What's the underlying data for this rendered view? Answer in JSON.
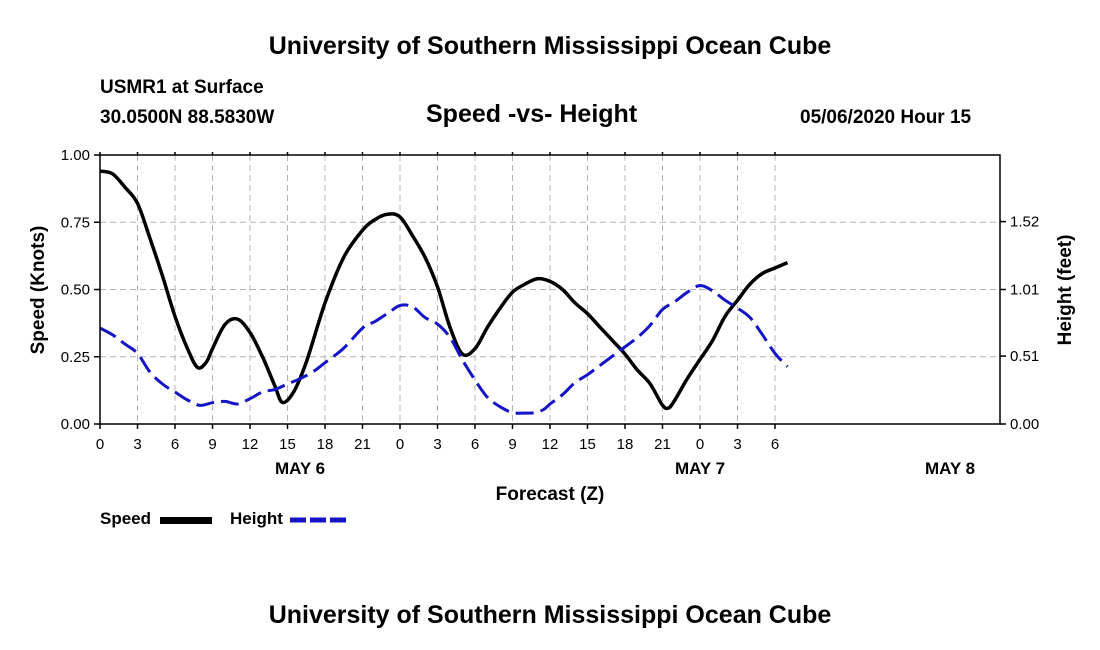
{
  "header": {
    "title_top": "University of Southern Mississippi Ocean Cube",
    "station": "USMR1 at Surface",
    "coords": "30.0500N 88.5830W",
    "chart_title": "Speed -vs- Height",
    "datetime": "05/06/2020 Hour 15"
  },
  "footer": {
    "title_bottom": "University of Southern Mississippi Ocean Cube"
  },
  "legend": {
    "speed_label": "Speed",
    "height_label": "Height"
  },
  "colors": {
    "speed": "#000000",
    "height": "#1414c8",
    "grid": "#b4b4b4"
  },
  "chart_data": {
    "type": "line",
    "title": "Speed -vs- Height",
    "xlabel": "Forecast (Z)",
    "ylabel_left": "Speed (Knots)",
    "ylabel_right": "Height (feet)",
    "x_range_hours": [
      0,
      72
    ],
    "x_ticks": [
      {
        "h": 0,
        "label": "0"
      },
      {
        "h": 3,
        "label": "3"
      },
      {
        "h": 6,
        "label": "6"
      },
      {
        "h": 9,
        "label": "9"
      },
      {
        "h": 12,
        "label": "12"
      },
      {
        "h": 15,
        "label": "15"
      },
      {
        "h": 18,
        "label": "18"
      },
      {
        "h": 21,
        "label": "21"
      },
      {
        "h": 24,
        "label": "0"
      },
      {
        "h": 27,
        "label": "3"
      },
      {
        "h": 30,
        "label": "6"
      },
      {
        "h": 33,
        "label": "9"
      },
      {
        "h": 36,
        "label": "12"
      },
      {
        "h": 39,
        "label": "15"
      },
      {
        "h": 42,
        "label": "18"
      },
      {
        "h": 45,
        "label": "21"
      },
      {
        "h": 48,
        "label": "0"
      },
      {
        "h": 51,
        "label": "3"
      },
      {
        "h": 54,
        "label": "6"
      }
    ],
    "date_labels": [
      {
        "h": 16,
        "label": "MAY 6"
      },
      {
        "h": 48,
        "label": "MAY 7"
      },
      {
        "h": 68,
        "label": "MAY 8"
      }
    ],
    "y_left_range": [
      0,
      1
    ],
    "y_left_ticks": [
      {
        "v": 0,
        "label": "0.00"
      },
      {
        "v": 0.25,
        "label": "0.25"
      },
      {
        "v": 0.5,
        "label": "0.50"
      },
      {
        "v": 0.75,
        "label": "0.75"
      },
      {
        "v": 1.0,
        "label": "1.00"
      }
    ],
    "y_right_ticks": [
      {
        "v": 0.0,
        "label": "0.00"
      },
      {
        "v": 0.51,
        "label": "0.51"
      },
      {
        "v": 1.01,
        "label": "1.01"
      },
      {
        "v": 1.52,
        "label": "1.52"
      }
    ],
    "height_axis_range_ft": [
      0.0,
      2.02
    ],
    "grid": true,
    "series": [
      {
        "name": "Speed",
        "axis": "left",
        "style": "solid",
        "points": [
          [
            0,
            0.94
          ],
          [
            1,
            0.93
          ],
          [
            2,
            0.88
          ],
          [
            3,
            0.82
          ],
          [
            4,
            0.69
          ],
          [
            5,
            0.55
          ],
          [
            6,
            0.4
          ],
          [
            7,
            0.28
          ],
          [
            7.8,
            0.21
          ],
          [
            8.5,
            0.23
          ],
          [
            9,
            0.28
          ],
          [
            10,
            0.37
          ],
          [
            11,
            0.39
          ],
          [
            12,
            0.34
          ],
          [
            13,
            0.25
          ],
          [
            14,
            0.14
          ],
          [
            14.6,
            0.08
          ],
          [
            15.5,
            0.12
          ],
          [
            16.5,
            0.23
          ],
          [
            18,
            0.45
          ],
          [
            19.5,
            0.62
          ],
          [
            21,
            0.72
          ],
          [
            22,
            0.76
          ],
          [
            23,
            0.78
          ],
          [
            24,
            0.77
          ],
          [
            25,
            0.7
          ],
          [
            26,
            0.62
          ],
          [
            27,
            0.51
          ],
          [
            28,
            0.36
          ],
          [
            29,
            0.26
          ],
          [
            30,
            0.28
          ],
          [
            31,
            0.36
          ],
          [
            32,
            0.43
          ],
          [
            33,
            0.49
          ],
          [
            34,
            0.52
          ],
          [
            35,
            0.54
          ],
          [
            36,
            0.53
          ],
          [
            37,
            0.5
          ],
          [
            38,
            0.45
          ],
          [
            39,
            0.41
          ],
          [
            40,
            0.36
          ],
          [
            41,
            0.31
          ],
          [
            42,
            0.26
          ],
          [
            43,
            0.2
          ],
          [
            44,
            0.15
          ],
          [
            45,
            0.07
          ],
          [
            45.5,
            0.06
          ],
          [
            46,
            0.09
          ],
          [
            47,
            0.17
          ],
          [
            48,
            0.24
          ],
          [
            49,
            0.31
          ],
          [
            50,
            0.4
          ],
          [
            51,
            0.46
          ],
          [
            52,
            0.52
          ],
          [
            53,
            0.56
          ],
          [
            54,
            0.58
          ],
          [
            55,
            0.6
          ]
        ]
      },
      {
        "name": "Height",
        "axis": "right",
        "style": "dashed",
        "points": [
          [
            0,
            0.72
          ],
          [
            1,
            0.67
          ],
          [
            2,
            0.6
          ],
          [
            3,
            0.53
          ],
          [
            4,
            0.39
          ],
          [
            5,
            0.3
          ],
          [
            6,
            0.24
          ],
          [
            7,
            0.18
          ],
          [
            8,
            0.14
          ],
          [
            9,
            0.16
          ],
          [
            10,
            0.17
          ],
          [
            11,
            0.15
          ],
          [
            12,
            0.19
          ],
          [
            13,
            0.24
          ],
          [
            14,
            0.26
          ],
          [
            15,
            0.3
          ],
          [
            16,
            0.34
          ],
          [
            17,
            0.39
          ],
          [
            18,
            0.46
          ],
          [
            19.5,
            0.57
          ],
          [
            21,
            0.72
          ],
          [
            22,
            0.77
          ],
          [
            23,
            0.83
          ],
          [
            24,
            0.89
          ],
          [
            25,
            0.88
          ],
          [
            26,
            0.8
          ],
          [
            27,
            0.75
          ],
          [
            28,
            0.65
          ],
          [
            29,
            0.48
          ],
          [
            30,
            0.33
          ],
          [
            31,
            0.2
          ],
          [
            32,
            0.13
          ],
          [
            33,
            0.085
          ],
          [
            34,
            0.082
          ],
          [
            34.8,
            0.085
          ],
          [
            35.5,
            0.11
          ],
          [
            36,
            0.15
          ],
          [
            37,
            0.22
          ],
          [
            38,
            0.31
          ],
          [
            39,
            0.37
          ],
          [
            40,
            0.44
          ],
          [
            41,
            0.51
          ],
          [
            42,
            0.58
          ],
          [
            43,
            0.65
          ],
          [
            44,
            0.74
          ],
          [
            45,
            0.86
          ],
          [
            46,
            0.92
          ],
          [
            47,
            0.99
          ],
          [
            48,
            1.04
          ],
          [
            49,
            1.0
          ],
          [
            50,
            0.93
          ],
          [
            51,
            0.87
          ],
          [
            52,
            0.8
          ],
          [
            53,
            0.67
          ],
          [
            54,
            0.53
          ],
          [
            55,
            0.43
          ]
        ]
      }
    ]
  }
}
